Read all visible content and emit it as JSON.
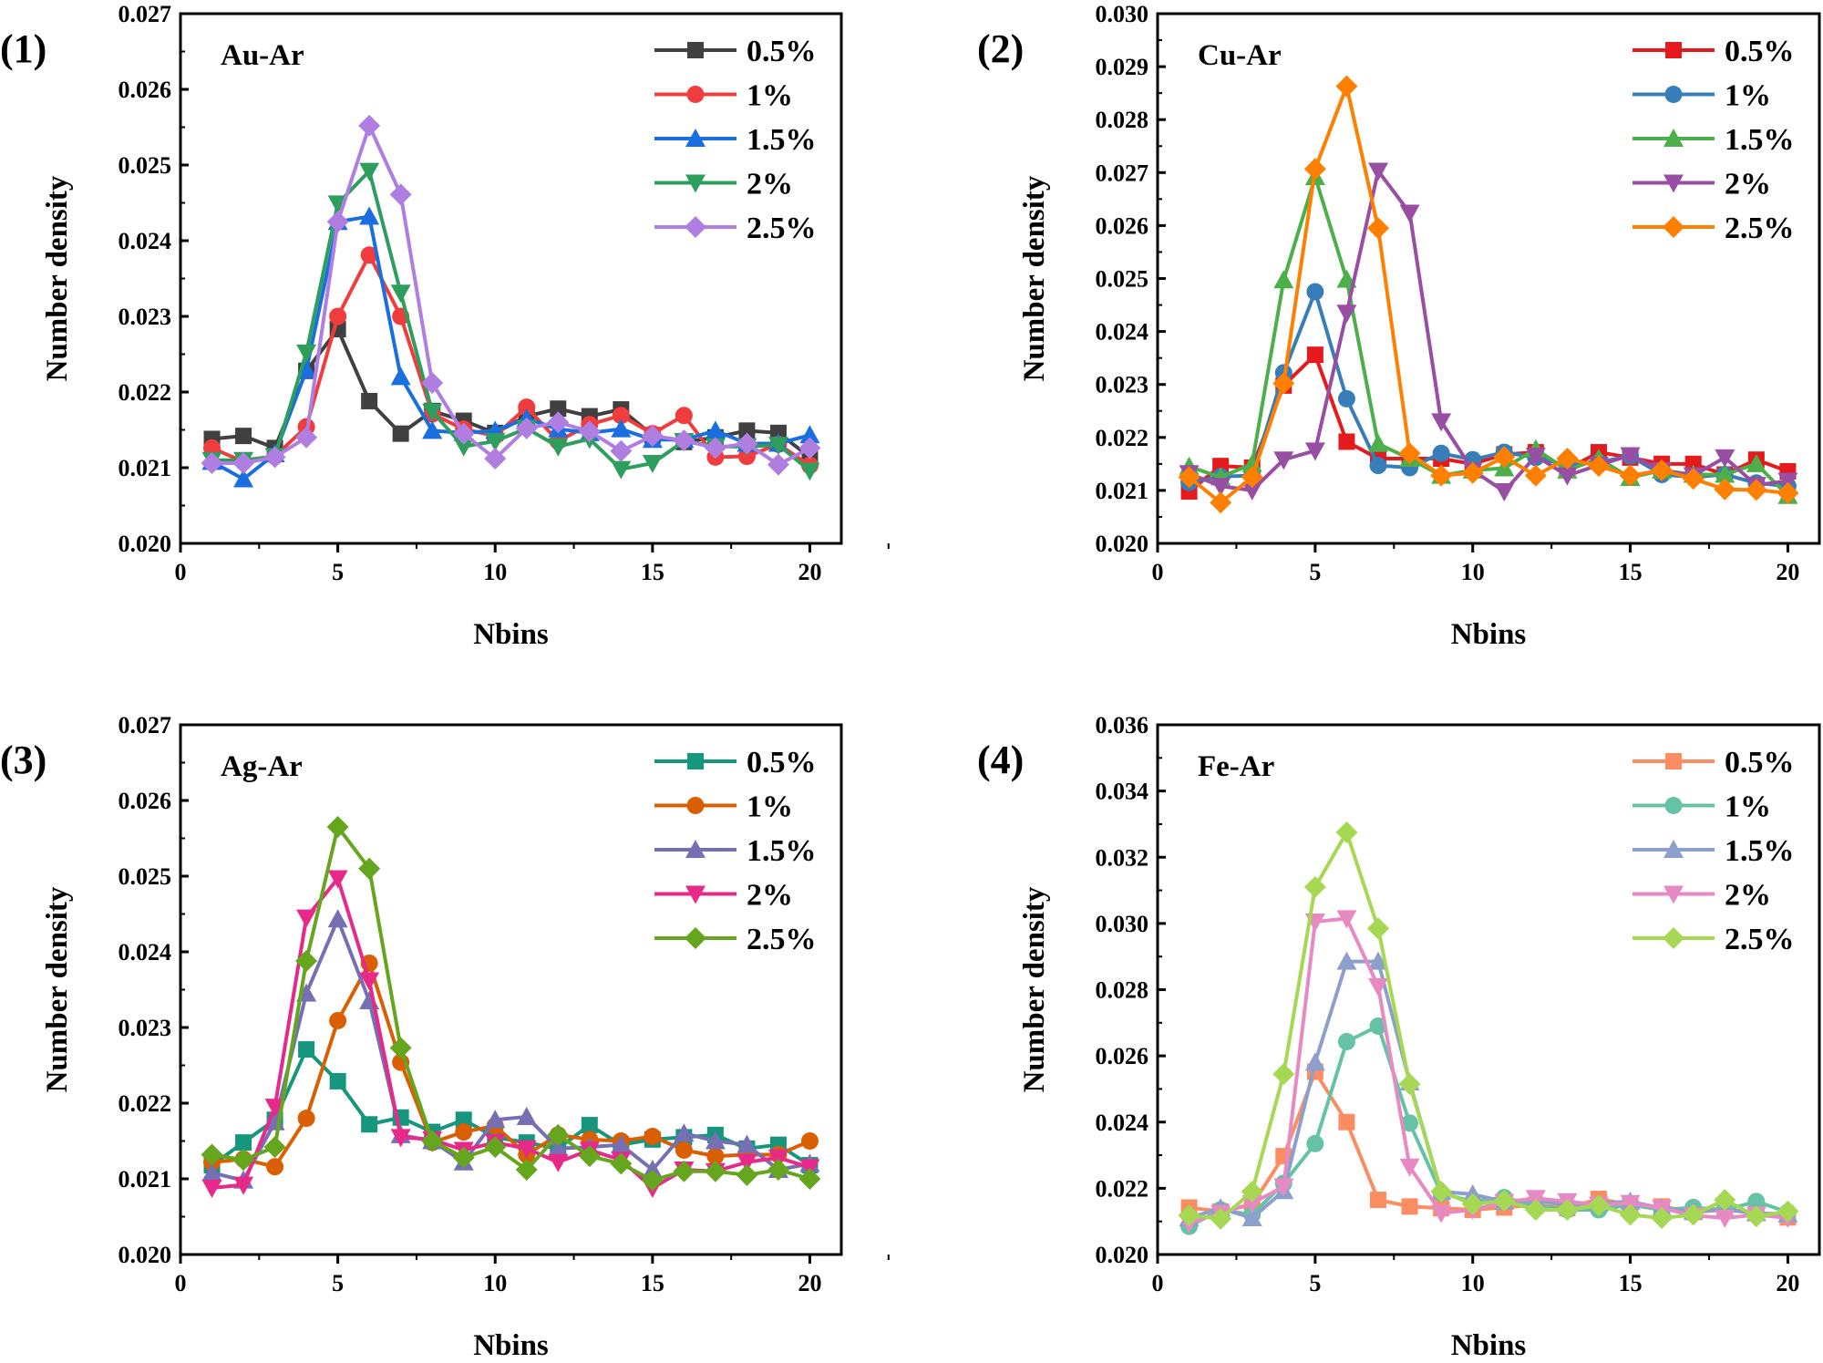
{
  "chart_data": [
    {
      "type": "line",
      "panel_label": "(1)",
      "title": "Au-Ar",
      "xlabel": "Nbins",
      "ylabel": "Number density",
      "xlim": [
        0,
        21
      ],
      "xticks": [
        0,
        5,
        10,
        15,
        20
      ],
      "ylim": [
        0.02,
        0.027
      ],
      "yticks": [
        "0.020",
        "0.021",
        "0.022",
        "0.023",
        "0.024",
        "0.025",
        "0.026",
        "0.027"
      ],
      "legend_position": "top-right",
      "grid": false,
      "x": [
        1,
        2,
        3,
        4,
        5,
        6,
        7,
        8,
        9,
        10,
        11,
        12,
        13,
        14,
        15,
        16,
        17,
        18,
        19,
        20
      ],
      "series": [
        {
          "name": "0.5%",
          "color": "#404040",
          "marker": "square",
          "values": [
            0.02138,
            0.02142,
            0.02126,
            0.02228,
            0.02283,
            0.02188,
            0.02145,
            0.02175,
            0.02162,
            0.02146,
            0.02168,
            0.02178,
            0.02168,
            0.02177,
            0.02143,
            0.02134,
            0.0214,
            0.02149,
            0.02146,
            0.02114
          ]
        },
        {
          "name": "1%",
          "color": "#f03c3c",
          "marker": "circle",
          "values": [
            0.02126,
            0.02108,
            0.02115,
            0.02154,
            0.023,
            0.02381,
            0.023,
            0.02171,
            0.02151,
            0.02142,
            0.0218,
            0.02135,
            0.02157,
            0.02169,
            0.02145,
            0.02169,
            0.02114,
            0.02115,
            0.02131,
            0.02103
          ]
        },
        {
          "name": "1.5%",
          "color": "#1a6fe0",
          "marker": "triangle-up",
          "values": [
            0.02108,
            0.02085,
            0.02118,
            0.02229,
            0.02425,
            0.02432,
            0.0222,
            0.02149,
            0.02146,
            0.02149,
            0.02165,
            0.02151,
            0.02146,
            0.02151,
            0.02137,
            0.02137,
            0.02149,
            0.02132,
            0.02132,
            0.02143
          ]
        },
        {
          "name": "2%",
          "color": "#2e9e5e",
          "marker": "triangle-down",
          "values": [
            0.0211,
            0.0211,
            0.02115,
            0.02252,
            0.02449,
            0.02492,
            0.02331,
            0.02174,
            0.02128,
            0.02135,
            0.02152,
            0.02128,
            0.02138,
            0.02098,
            0.02106,
            0.02135,
            0.02128,
            0.02128,
            0.0213,
            0.02096
          ]
        },
        {
          "name": "2.5%",
          "color": "#b07ee0",
          "marker": "diamond",
          "values": [
            0.02106,
            0.02106,
            0.02114,
            0.0214,
            0.02425,
            0.02552,
            0.02461,
            0.02212,
            0.02145,
            0.02112,
            0.02152,
            0.0216,
            0.02148,
            0.02122,
            0.02142,
            0.02136,
            0.02126,
            0.02132,
            0.02104,
            0.02126
          ]
        }
      ]
    },
    {
      "type": "line",
      "panel_label": "(2)",
      "title": "Cu-Ar",
      "xlabel": "Nbins",
      "ylabel": "Number density",
      "xlim": [
        0,
        21
      ],
      "xticks": [
        0,
        5,
        10,
        15,
        20
      ],
      "ylim": [
        0.02,
        0.03
      ],
      "yticks": [
        "0.020",
        "0.021",
        "0.022",
        "0.023",
        "0.024",
        "0.025",
        "0.026",
        "0.027",
        "0.028",
        "0.029",
        "0.030"
      ],
      "legend_position": "top-right",
      "grid": false,
      "x": [
        1,
        2,
        3,
        4,
        5,
        6,
        7,
        8,
        9,
        10,
        11,
        12,
        13,
        14,
        15,
        16,
        17,
        18,
        19,
        20
      ],
      "series": [
        {
          "name": "0.5%",
          "color": "#e41a1c",
          "marker": "square",
          "values": [
            0.02098,
            0.02146,
            0.02143,
            0.02298,
            0.02356,
            0.02192,
            0.0216,
            0.0216,
            0.0216,
            0.0215,
            0.02168,
            0.02172,
            0.0214,
            0.02172,
            0.02162,
            0.0215,
            0.0215,
            0.0213,
            0.02158,
            0.02136
          ]
        },
        {
          "name": "1%",
          "color": "#377eb8",
          "marker": "circle",
          "values": [
            0.02115,
            0.02126,
            0.02128,
            0.02322,
            0.02475,
            0.02273,
            0.02147,
            0.02143,
            0.0217,
            0.02158,
            0.02172,
            0.02162,
            0.02148,
            0.02153,
            0.02165,
            0.0213,
            0.02125,
            0.0213,
            0.02114,
            0.02108
          ]
        },
        {
          "name": "1.5%",
          "color": "#4daf4a",
          "marker": "triangle-up",
          "values": [
            0.02145,
            0.02125,
            0.0215,
            0.02497,
            0.02692,
            0.02498,
            0.02188,
            0.0216,
            0.02128,
            0.02138,
            0.02142,
            0.02178,
            0.02138,
            0.0216,
            0.02124,
            0.02138,
            0.0213,
            0.0213,
            0.0215,
            0.0209
          ]
        },
        {
          "name": "2%",
          "color": "#984ea3",
          "marker": "triangle-down",
          "values": [
            0.02132,
            0.02108,
            0.021,
            0.02158,
            0.02175,
            0.02435,
            0.02703,
            0.02624,
            0.0223,
            0.02138,
            0.02098,
            0.02165,
            0.02128,
            0.02148,
            0.02166,
            0.02138,
            0.02128,
            0.02162,
            0.0211,
            0.02118
          ]
        },
        {
          "name": "2.5%",
          "color": "#ff7f00",
          "marker": "diamond",
          "values": [
            0.02125,
            0.02077,
            0.02125,
            0.02302,
            0.02707,
            0.02863,
            0.02595,
            0.0217,
            0.02128,
            0.02133,
            0.02163,
            0.02128,
            0.0216,
            0.02146,
            0.02128,
            0.02138,
            0.02122,
            0.02102,
            0.02101,
            0.02095
          ]
        }
      ]
    },
    {
      "type": "line",
      "panel_label": "(3)",
      "title": "Ag-Ar",
      "xlabel": "Nbins",
      "ylabel": "Number density",
      "xlim": [
        0,
        21
      ],
      "xticks": [
        0,
        5,
        10,
        15,
        20
      ],
      "ylim": [
        0.02,
        0.027
      ],
      "yticks": [
        "0.020",
        "0.021",
        "0.022",
        "0.023",
        "0.024",
        "0.025",
        "0.026",
        "0.027"
      ],
      "legend_position": "top-right",
      "grid": false,
      "x": [
        1,
        2,
        3,
        4,
        5,
        6,
        7,
        8,
        9,
        10,
        11,
        12,
        13,
        14,
        15,
        16,
        17,
        18,
        19,
        20
      ],
      "series": [
        {
          "name": "0.5%",
          "color": "#17967e",
          "marker": "square",
          "values": [
            0.02118,
            0.02148,
            0.02178,
            0.02271,
            0.02229,
            0.02172,
            0.02181,
            0.02162,
            0.02178,
            0.02155,
            0.02148,
            0.0214,
            0.02171,
            0.02145,
            0.02152,
            0.02155,
            0.02158,
            0.0214,
            0.02145,
            0.02118
          ]
        },
        {
          "name": "1%",
          "color": "#d95f02",
          "marker": "circle",
          "values": [
            0.02122,
            0.02126,
            0.02116,
            0.0218,
            0.02309,
            0.02385,
            0.02254,
            0.02148,
            0.02162,
            0.0217,
            0.02132,
            0.02158,
            0.02152,
            0.0215,
            0.02156,
            0.02138,
            0.0213,
            0.02132,
            0.02132,
            0.0215
          ]
        },
        {
          "name": "1.5%",
          "color": "#7570b3",
          "marker": "triangle-up",
          "values": [
            0.02108,
            0.02098,
            0.02175,
            0.02345,
            0.02443,
            0.02335,
            0.02158,
            0.0215,
            0.02122,
            0.02178,
            0.02182,
            0.0214,
            0.02142,
            0.02145,
            0.02112,
            0.0216,
            0.0215,
            0.02145,
            0.02112,
            0.0212
          ]
        },
        {
          "name": "2%",
          "color": "#e7298a",
          "marker": "triangle-down",
          "values": [
            0.02088,
            0.02092,
            0.02195,
            0.02445,
            0.02497,
            0.02362,
            0.02155,
            0.02152,
            0.02138,
            0.02148,
            0.0214,
            0.02122,
            0.02138,
            0.02125,
            0.02088,
            0.02112,
            0.0211,
            0.02122,
            0.02128,
            0.02115
          ]
        },
        {
          "name": "2.5%",
          "color": "#66a61e",
          "marker": "diamond",
          "values": [
            0.02132,
            0.02125,
            0.02142,
            0.02388,
            0.02565,
            0.0251,
            0.02273,
            0.0215,
            0.02128,
            0.02142,
            0.02112,
            0.02158,
            0.0213,
            0.0212,
            0.02098,
            0.0211,
            0.0211,
            0.02105,
            0.02112,
            0.021
          ]
        }
      ]
    },
    {
      "type": "line",
      "panel_label": "(4)",
      "title": "Fe-Ar",
      "xlabel": "Nbins",
      "ylabel": "Number density",
      "xlim": [
        0,
        21
      ],
      "xticks": [
        0,
        5,
        10,
        15,
        20
      ],
      "ylim": [
        0.02,
        0.036
      ],
      "yticks": [
        "0.020",
        "0.022",
        "0.024",
        "0.026",
        "0.028",
        "0.030",
        "0.032",
        "0.034",
        "0.036"
      ],
      "legend_position": "top-right",
      "grid": false,
      "x": [
        1,
        2,
        3,
        4,
        5,
        6,
        7,
        8,
        9,
        10,
        11,
        12,
        13,
        14,
        15,
        16,
        17,
        18,
        19,
        20
      ],
      "series": [
        {
          "name": "0.5%",
          "color": "#fc8d62",
          "marker": "square",
          "values": [
            0.02142,
            0.0213,
            0.0215,
            0.02297,
            0.02552,
            0.024,
            0.02165,
            0.02145,
            0.0214,
            0.02135,
            0.02142,
            0.0215,
            0.0214,
            0.02168,
            0.0215,
            0.02145,
            0.02128,
            0.02135,
            0.02128,
            0.02112
          ]
        },
        {
          "name": "1%",
          "color": "#66c2a5",
          "marker": "circle",
          "values": [
            0.02085,
            0.02135,
            0.0212,
            0.02215,
            0.02335,
            0.02643,
            0.0269,
            0.02397,
            0.02185,
            0.0216,
            0.02172,
            0.02148,
            0.02135,
            0.02135,
            0.0215,
            0.02135,
            0.02142,
            0.02135,
            0.0216,
            0.02128
          ]
        },
        {
          "name": "1.5%",
          "color": "#8da0cb",
          "marker": "triangle-up",
          "values": [
            0.0211,
            0.0214,
            0.0211,
            0.02192,
            0.0258,
            0.02885,
            0.02885,
            0.0252,
            0.0219,
            0.02182,
            0.0216,
            0.02162,
            0.0215,
            0.02155,
            0.0216,
            0.0214,
            0.0213,
            0.02135,
            0.02125,
            0.02122
          ]
        },
        {
          "name": "2%",
          "color": "#e78ac3",
          "marker": "triangle-down",
          "values": [
            0.02095,
            0.02125,
            0.02155,
            0.02205,
            0.03005,
            0.03015,
            0.0281,
            0.02265,
            0.02125,
            0.02135,
            0.02158,
            0.0217,
            0.0216,
            0.0215,
            0.02155,
            0.0214,
            0.02118,
            0.0211,
            0.0212,
            0.0211
          ]
        },
        {
          "name": "2.5%",
          "color": "#a6d854",
          "marker": "diamond",
          "values": [
            0.02118,
            0.02108,
            0.0219,
            0.02545,
            0.0311,
            0.03275,
            0.02985,
            0.02515,
            0.0219,
            0.02152,
            0.02162,
            0.02135,
            0.02135,
            0.02148,
            0.0212,
            0.0211,
            0.0212,
            0.02165,
            0.02115,
            0.0213
          ]
        }
      ]
    }
  ]
}
